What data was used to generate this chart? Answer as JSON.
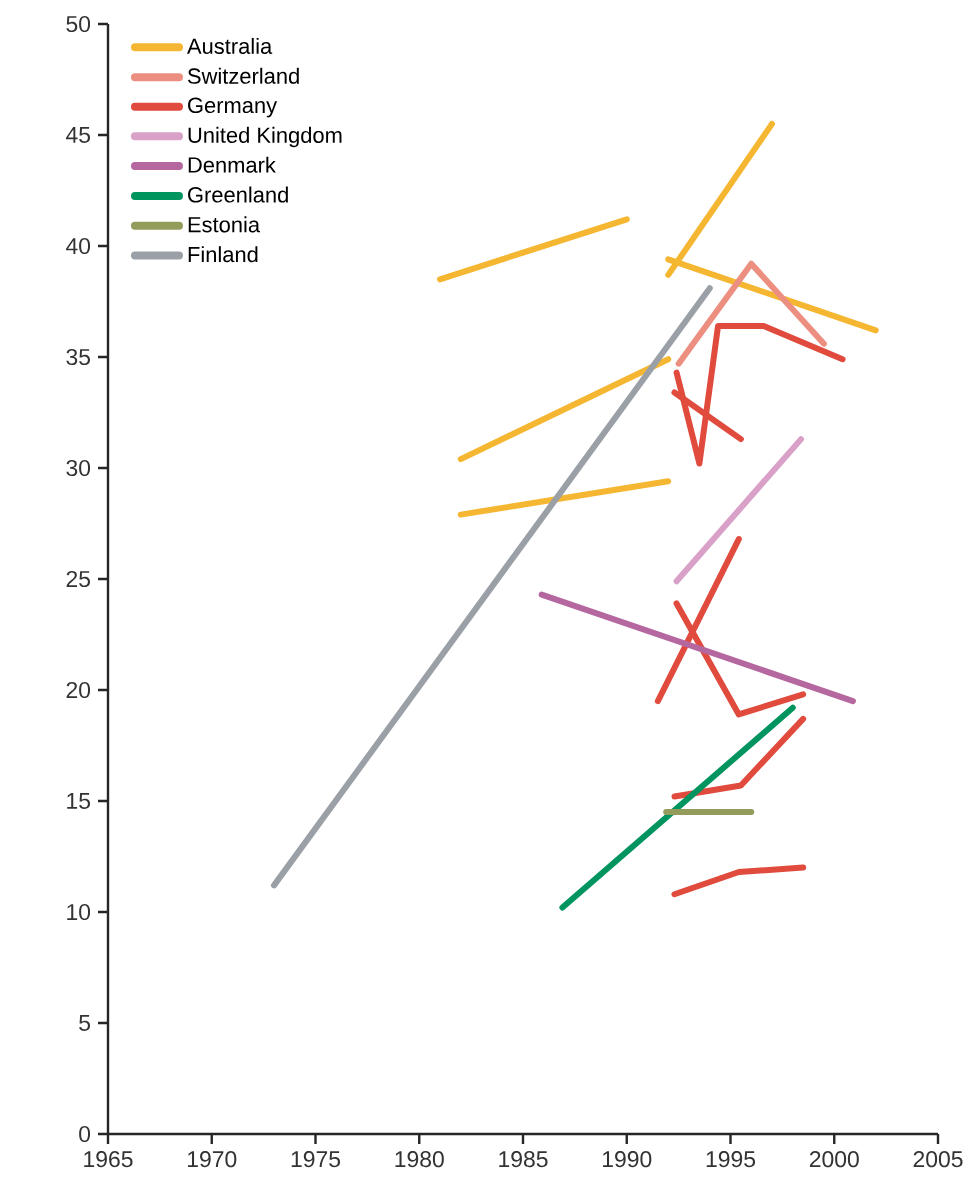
{
  "chart_data": {
    "type": "line",
    "xlim": [
      1965,
      2005
    ],
    "ylim": [
      0,
      50
    ],
    "xticks": [
      1965,
      1970,
      1975,
      1980,
      1985,
      1990,
      1995,
      2000,
      2005
    ],
    "yticks": [
      0,
      5,
      10,
      15,
      20,
      25,
      30,
      35,
      40,
      45,
      50
    ],
    "grid": false,
    "legend": "top left",
    "series": [
      {
        "name": "Australia",
        "color": "#f5b731",
        "x": [
          1981,
          1990
        ],
        "values": [
          38.5,
          41.2
        ]
      },
      {
        "color": "#f5b731",
        "x": [
          1992,
          1997
        ],
        "values": [
          38.7,
          45.5
        ]
      },
      {
        "color": "#f5b731",
        "x": [
          1992,
          2002
        ],
        "values": [
          39.4,
          36.2
        ]
      },
      {
        "color": "#f5b731",
        "x": [
          1982,
          1992
        ],
        "values": [
          30.4,
          34.9
        ]
      },
      {
        "color": "#f5b731",
        "x": [
          1982,
          1992
        ],
        "values": [
          27.9,
          29.4
        ]
      },
      {
        "name": "Switzerland",
        "color": "#ec8f80",
        "x": [
          1992.5,
          1996,
          1999.5
        ],
        "values": [
          34.7,
          39.2,
          35.6
        ]
      },
      {
        "name": "Germany",
        "color": "#e04b3d",
        "x": [
          1992.4,
          1993.5,
          1994.4,
          1996.6,
          2000.4
        ],
        "values": [
          34.3,
          30.2,
          36.4,
          36.4,
          34.9
        ]
      },
      {
        "color": "#e04b3d",
        "x": [
          1992.3,
          1995.5
        ],
        "values": [
          33.4,
          31.3
        ]
      },
      {
        "color": "#e04b3d",
        "x": [
          1992.4,
          1995.4,
          1998.5
        ],
        "values": [
          23.9,
          18.9,
          19.8
        ]
      },
      {
        "color": "#e04b3d",
        "x": [
          1991.5,
          1995.4
        ],
        "values": [
          19.5,
          26.8
        ]
      },
      {
        "color": "#e04b3d",
        "x": [
          1992.3,
          1995.5,
          1998.5
        ],
        "values": [
          15.2,
          15.7,
          18.7
        ]
      },
      {
        "color": "#e04b3d",
        "x": [
          1992.3,
          1995.4,
          1998.5
        ],
        "values": [
          10.8,
          11.8,
          12.0
        ]
      },
      {
        "name": "United Kingdom",
        "color": "#d9a0c8",
        "x": [
          1992.4,
          1998.4
        ],
        "values": [
          24.9,
          31.3
        ]
      },
      {
        "name": "Denmark",
        "color": "#b5679f",
        "x": [
          1985.9,
          2000.9
        ],
        "values": [
          24.3,
          19.5
        ]
      },
      {
        "name": "Greenland",
        "color": "#00945f",
        "x": [
          1986.9,
          1998
        ],
        "values": [
          10.2,
          19.2
        ]
      },
      {
        "name": "Estonia",
        "color": "#949c5c",
        "x": [
          1991.9,
          1996
        ],
        "values": [
          14.5,
          14.5
        ]
      },
      {
        "name": "Finland",
        "color": "#9aa0a6",
        "x": [
          1973,
          1994
        ],
        "values": [
          11.2,
          38.1
        ]
      }
    ]
  }
}
